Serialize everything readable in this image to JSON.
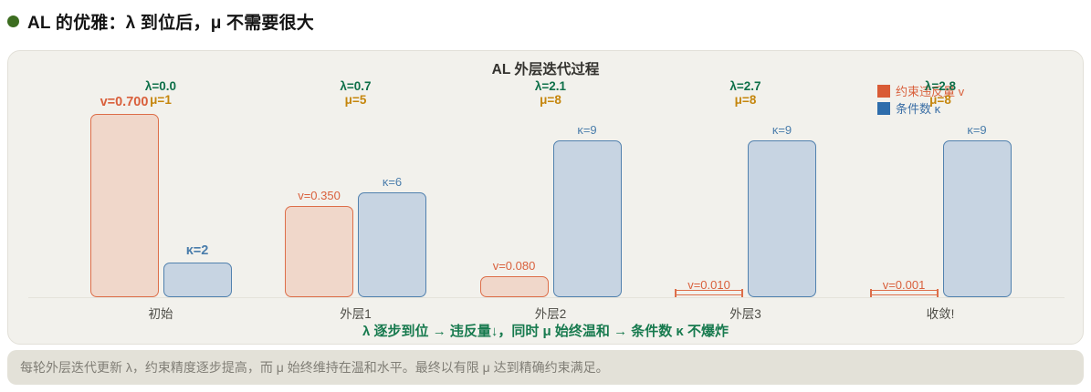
{
  "page": {
    "title": "AL 的优雅：λ 到位后，μ 不需要很大"
  },
  "chart_data": {
    "type": "bar",
    "title": "AL 外层迭代过程",
    "categories": [
      "初始",
      "外层1",
      "外层2",
      "外层3",
      "收敛!"
    ],
    "series": [
      {
        "name": "约束违反量 v",
        "values": [
          0.7,
          0.35,
          0.08,
          0.01,
          0.001
        ],
        "fill": "#f0d7ca",
        "border": "#dd6e49",
        "label_color": "#d9603c"
      },
      {
        "name": "条件数 κ",
        "values": [
          2,
          6,
          9,
          9,
          9
        ],
        "fill": "#c7d4e2",
        "border": "#5181ae",
        "label_color": "#4a7dab"
      }
    ],
    "bar_labels_v": [
      "v=0.700",
      "v=0.350",
      "v=0.080",
      "v=0.010",
      "v=0.001"
    ],
    "bar_labels_k": [
      "κ=2",
      "κ=6",
      "κ=9",
      "κ=9",
      "κ=9"
    ],
    "group_annotations": [
      {
        "lambda": "λ=0.0",
        "mu": "μ=1"
      },
      {
        "lambda": "λ=0.7",
        "mu": "μ=5"
      },
      {
        "lambda": "λ=2.1",
        "mu": "μ=8"
      },
      {
        "lambda": "λ=2.7",
        "mu": "μ=8"
      },
      {
        "lambda": "λ=2.8",
        "mu": "μ=8"
      }
    ],
    "legend": [
      {
        "label": "约束违反量 v",
        "swatch": "#d95b35",
        "text_color": "#d9603c"
      },
      {
        "label": "条件数 κ",
        "swatch": "#2e6dac",
        "text_color": "#3a6ea5"
      }
    ],
    "legend_position": "upper right",
    "grid": false,
    "ylim_v": [
      0,
      0.75
    ],
    "ylim_k": [
      0,
      10
    ],
    "footnote": "λ 逐步到位 → 违反量↓，同时 μ 始终温和 → 条件数 κ 不爆炸",
    "colors": {
      "lambda_text": "#0e7049",
      "mu_text": "#c5860d",
      "annotation_green": "#177a4e"
    }
  },
  "footer": {
    "text": "每轮外层迭代更新 λ，约束精度逐步提高，而 μ 始终维持在温和水平。最终以有限 μ 达到精确约束满足。"
  }
}
